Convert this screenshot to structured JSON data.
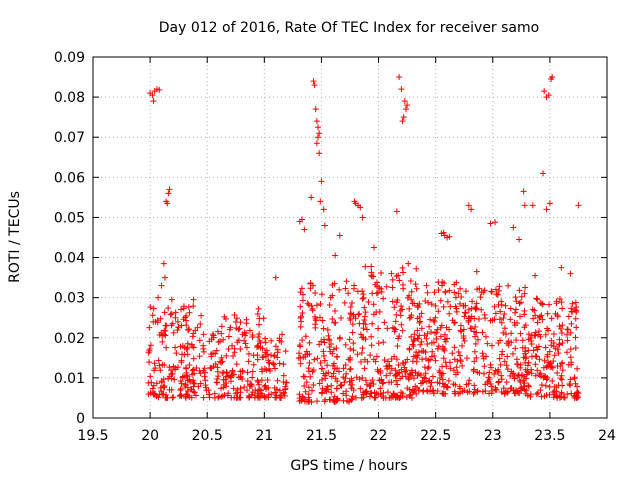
{
  "chart_data": {
    "type": "scatter",
    "title": "Day 012 of 2016, Rate Of TEC Index for receiver samo",
    "xlabel": "GPS time / hours",
    "ylabel": "ROTI / TECUs",
    "xlim": [
      19.5,
      24
    ],
    "ylim": [
      0,
      0.09
    ],
    "x_ticks": [
      19.5,
      20,
      20.5,
      21,
      21.5,
      22,
      22.5,
      23,
      23.5,
      24
    ],
    "x_tick_labels": [
      "19.5",
      "20",
      "20.5",
      "21",
      "21.5",
      "22",
      "22.5",
      "23",
      "23.5",
      "24"
    ],
    "y_ticks": [
      0,
      0.01,
      0.02,
      0.03,
      0.04,
      0.05,
      0.06,
      0.07,
      0.08,
      0.09
    ],
    "y_tick_labels": [
      "0",
      "0.01",
      "0.02",
      "0.03",
      "0.04",
      "0.05",
      "0.06",
      "0.07",
      "0.08",
      "0.09"
    ],
    "grid": true,
    "marker": "+",
    "series_color": "#ff0000",
    "series": [
      {
        "name": "ROTI",
        "points": [
          [
            20.0,
            0.081
          ],
          [
            20.02,
            0.0805
          ],
          [
            20.04,
            0.0815
          ],
          [
            20.06,
            0.082
          ],
          [
            20.03,
            0.079
          ],
          [
            20.08,
            0.0818
          ],
          [
            20.14,
            0.054
          ],
          [
            20.15,
            0.0535
          ],
          [
            20.17,
            0.057
          ],
          [
            20.16,
            0.056
          ],
          [
            21.43,
            0.084
          ],
          [
            21.44,
            0.083
          ],
          [
            21.45,
            0.077
          ],
          [
            21.46,
            0.074
          ],
          [
            21.47,
            0.0725
          ],
          [
            21.48,
            0.071
          ],
          [
            21.47,
            0.07
          ],
          [
            21.46,
            0.0685
          ],
          [
            21.48,
            0.066
          ],
          [
            21.5,
            0.059
          ],
          [
            21.49,
            0.054
          ],
          [
            21.31,
            0.049
          ],
          [
            21.33,
            0.0495
          ],
          [
            21.35,
            0.047
          ],
          [
            21.41,
            0.055
          ],
          [
            21.52,
            0.052
          ],
          [
            21.53,
            0.048
          ],
          [
            22.18,
            0.085
          ],
          [
            22.2,
            0.082
          ],
          [
            22.23,
            0.079
          ],
          [
            22.24,
            0.077
          ],
          [
            22.25,
            0.078
          ],
          [
            22.22,
            0.075
          ],
          [
            22.21,
            0.074
          ],
          [
            22.16,
            0.0515
          ],
          [
            22.55,
            0.046
          ],
          [
            22.58,
            0.0455
          ],
          [
            22.6,
            0.045
          ],
          [
            22.57,
            0.0462
          ],
          [
            22.62,
            0.0452
          ],
          [
            22.79,
            0.053
          ],
          [
            22.81,
            0.052
          ],
          [
            22.98,
            0.0485
          ],
          [
            23.02,
            0.0488
          ],
          [
            23.45,
            0.0815
          ],
          [
            23.47,
            0.08
          ],
          [
            23.49,
            0.0805
          ],
          [
            23.51,
            0.0845
          ],
          [
            23.52,
            0.085
          ],
          [
            23.44,
            0.061
          ],
          [
            23.5,
            0.0535
          ],
          [
            23.27,
            0.0565
          ],
          [
            23.28,
            0.053
          ],
          [
            23.35,
            0.053
          ],
          [
            23.47,
            0.052
          ],
          [
            23.75,
            0.053
          ],
          [
            21.79,
            0.054
          ],
          [
            21.8,
            0.0535
          ],
          [
            21.82,
            0.053
          ],
          [
            21.84,
            0.0525
          ],
          [
            21.86,
            0.05
          ],
          [
            20.12,
            0.0385
          ],
          [
            20.1,
            0.033
          ],
          [
            20.07,
            0.03
          ],
          [
            20.13,
            0.035
          ],
          [
            20.19,
            0.0295
          ],
          [
            20.38,
            0.0295
          ],
          [
            20.95,
            0.0272
          ],
          [
            21.1,
            0.035
          ],
          [
            21.62,
            0.0405
          ],
          [
            21.66,
            0.0455
          ],
          [
            21.96,
            0.0425
          ],
          [
            22.26,
            0.0385
          ],
          [
            22.33,
            0.0372
          ],
          [
            22.42,
            0.033
          ],
          [
            22.86,
            0.0365
          ],
          [
            23.18,
            0.0475
          ],
          [
            23.23,
            0.0445
          ],
          [
            23.37,
            0.0355
          ],
          [
            23.6,
            0.0375
          ],
          [
            23.68,
            0.036
          ],
          [
            23.72,
            0.027
          ]
        ]
      }
    ],
    "dense_clusters": [
      {
        "x_range": [
          19.98,
          20.48
        ],
        "y_range": [
          0.005,
          0.028
        ],
        "count": 190
      },
      {
        "x_range": [
          20.48,
          21.0
        ],
        "y_range": [
          0.005,
          0.026
        ],
        "count": 180
      },
      {
        "x_range": [
          21.0,
          21.2
        ],
        "y_range": [
          0.005,
          0.022
        ],
        "count": 65
      },
      {
        "x_range": [
          21.3,
          21.8
        ],
        "y_range": [
          0.004,
          0.035
        ],
        "count": 210
      },
      {
        "x_range": [
          21.8,
          22.3
        ],
        "y_range": [
          0.005,
          0.038
        ],
        "count": 220
      },
      {
        "x_range": [
          22.3,
          22.8
        ],
        "y_range": [
          0.006,
          0.034
        ],
        "count": 220
      },
      {
        "x_range": [
          22.8,
          23.3
        ],
        "y_range": [
          0.006,
          0.033
        ],
        "count": 200
      },
      {
        "x_range": [
          23.3,
          23.75
        ],
        "y_range": [
          0.005,
          0.03
        ],
        "count": 190
      }
    ]
  }
}
